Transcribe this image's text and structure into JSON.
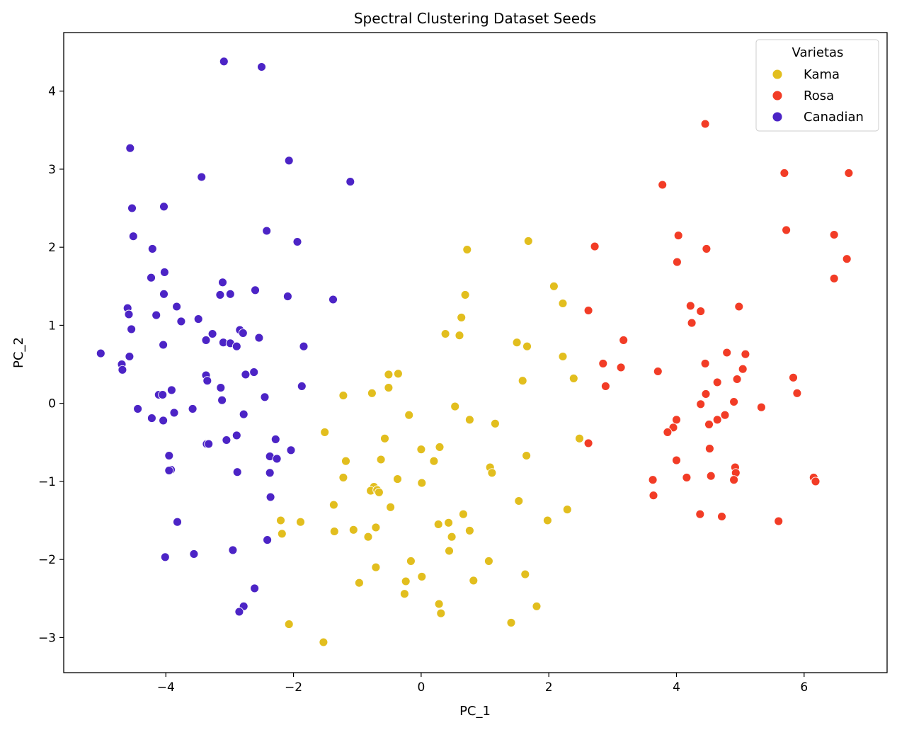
{
  "chart_data": {
    "type": "scatter",
    "title": "Spectral Clustering Dataset Seeds",
    "xlabel": "PC_1",
    "ylabel": "PC_2",
    "xlim": [
      -5.6,
      7.3
    ],
    "ylim": [
      -3.45,
      4.75
    ],
    "xticks": [
      -4,
      -2,
      0,
      2,
      4,
      6
    ],
    "yticks": [
      -3,
      -2,
      -1,
      0,
      1,
      2,
      3,
      4
    ],
    "xtick_labels": [
      "−4",
      "−2",
      "0",
      "2",
      "4",
      "6"
    ],
    "ytick_labels": [
      "−3",
      "−2",
      "−1",
      "0",
      "1",
      "2",
      "3",
      "4"
    ],
    "grid": false,
    "legend": {
      "title": "Varietas",
      "position": "top-right"
    },
    "series": [
      {
        "name": "Kama",
        "color": "#e2be1e",
        "points": [
          [
            0.72,
            1.97
          ],
          [
            1.68,
            2.08
          ],
          [
            2.08,
            1.5
          ],
          [
            2.22,
            1.28
          ],
          [
            0.69,
            1.39
          ],
          [
            0.63,
            1.1
          ],
          [
            0.38,
            0.89
          ],
          [
            0.6,
            0.87
          ],
          [
            1.5,
            0.78
          ],
          [
            1.66,
            0.73
          ],
          [
            2.22,
            0.6
          ],
          [
            2.39,
            0.32
          ],
          [
            1.59,
            0.29
          ],
          [
            -0.51,
            0.37
          ],
          [
            -0.36,
            0.38
          ],
          [
            -0.51,
            0.2
          ],
          [
            -0.77,
            0.13
          ],
          [
            -1.22,
            0.1
          ],
          [
            0.53,
            -0.04
          ],
          [
            -0.19,
            -0.15
          ],
          [
            0.76,
            -0.21
          ],
          [
            1.16,
            -0.26
          ],
          [
            -1.51,
            -0.37
          ],
          [
            -0.57,
            -0.45
          ],
          [
            2.48,
            -0.45
          ],
          [
            0.29,
            -0.56
          ],
          [
            0.0,
            -0.59
          ],
          [
            0.2,
            -0.74
          ],
          [
            -1.18,
            -0.74
          ],
          [
            -0.63,
            -0.72
          ],
          [
            1.65,
            -0.67
          ],
          [
            1.08,
            -0.82
          ],
          [
            1.11,
            -0.89
          ],
          [
            -1.22,
            -0.95
          ],
          [
            -0.37,
            -0.97
          ],
          [
            0.01,
            -1.02
          ],
          [
            -0.74,
            -1.07
          ],
          [
            -0.79,
            -1.12
          ],
          [
            -0.69,
            -1.11
          ],
          [
            -0.66,
            -1.14
          ],
          [
            -1.37,
            -1.3
          ],
          [
            -0.48,
            -1.33
          ],
          [
            1.53,
            -1.25
          ],
          [
            2.29,
            -1.36
          ],
          [
            0.66,
            -1.42
          ],
          [
            -2.2,
            -1.5
          ],
          [
            -1.89,
            -1.52
          ],
          [
            0.43,
            -1.53
          ],
          [
            0.27,
            -1.55
          ],
          [
            1.98,
            -1.5
          ],
          [
            -0.71,
            -1.59
          ],
          [
            -1.06,
            -1.62
          ],
          [
            -1.36,
            -1.64
          ],
          [
            0.76,
            -1.63
          ],
          [
            -2.18,
            -1.67
          ],
          [
            0.48,
            -1.71
          ],
          [
            -0.83,
            -1.71
          ],
          [
            0.44,
            -1.89
          ],
          [
            -0.16,
            -2.02
          ],
          [
            1.06,
            -2.02
          ],
          [
            -0.71,
            -2.1
          ],
          [
            1.63,
            -2.19
          ],
          [
            0.01,
            -2.22
          ],
          [
            0.82,
            -2.27
          ],
          [
            -0.24,
            -2.28
          ],
          [
            -0.97,
            -2.3
          ],
          [
            -0.26,
            -2.44
          ],
          [
            0.28,
            -2.57
          ],
          [
            1.81,
            -2.6
          ],
          [
            0.31,
            -2.69
          ],
          [
            1.41,
            -2.81
          ],
          [
            -2.07,
            -2.83
          ],
          [
            -1.53,
            -3.06
          ]
        ]
      },
      {
        "name": "Rosa",
        "color": "#f23c26",
        "points": [
          [
            4.45,
            3.58
          ],
          [
            3.78,
            2.8
          ],
          [
            5.69,
            2.95
          ],
          [
            6.7,
            2.95
          ],
          [
            5.72,
            2.22
          ],
          [
            6.47,
            2.16
          ],
          [
            4.03,
            2.15
          ],
          [
            2.72,
            2.01
          ],
          [
            4.47,
            1.98
          ],
          [
            4.01,
            1.81
          ],
          [
            6.67,
            1.85
          ],
          [
            6.47,
            1.6
          ],
          [
            4.22,
            1.25
          ],
          [
            4.98,
            1.24
          ],
          [
            2.62,
            1.19
          ],
          [
            4.38,
            1.18
          ],
          [
            4.24,
            1.03
          ],
          [
            3.17,
            0.81
          ],
          [
            4.79,
            0.65
          ],
          [
            5.08,
            0.63
          ],
          [
            2.85,
            0.51
          ],
          [
            4.45,
            0.51
          ],
          [
            3.13,
            0.46
          ],
          [
            5.04,
            0.44
          ],
          [
            3.71,
            0.41
          ],
          [
            5.83,
            0.33
          ],
          [
            4.95,
            0.31
          ],
          [
            4.64,
            0.27
          ],
          [
            2.89,
            0.22
          ],
          [
            5.89,
            0.13
          ],
          [
            4.46,
            0.12
          ],
          [
            4.9,
            0.02
          ],
          [
            4.38,
            -0.01
          ],
          [
            5.33,
            -0.05
          ],
          [
            4.76,
            -0.15
          ],
          [
            4.0,
            -0.21
          ],
          [
            4.64,
            -0.21
          ],
          [
            4.51,
            -0.27
          ],
          [
            3.95,
            -0.31
          ],
          [
            3.86,
            -0.37
          ],
          [
            2.62,
            -0.51
          ],
          [
            4.52,
            -0.58
          ],
          [
            4.0,
            -0.73
          ],
          [
            4.92,
            -0.82
          ],
          [
            4.93,
            -0.89
          ],
          [
            4.54,
            -0.93
          ],
          [
            4.16,
            -0.95
          ],
          [
            6.15,
            -0.95
          ],
          [
            3.63,
            -0.98
          ],
          [
            4.9,
            -0.98
          ],
          [
            6.18,
            -1.0
          ],
          [
            3.64,
            -1.18
          ],
          [
            4.37,
            -1.42
          ],
          [
            4.71,
            -1.45
          ],
          [
            5.6,
            -1.51
          ]
        ]
      },
      {
        "name": "Canadian",
        "color": "#4c24c6",
        "points": [
          [
            -3.09,
            4.38
          ],
          [
            -2.5,
            4.31
          ],
          [
            -4.56,
            3.27
          ],
          [
            -2.07,
            3.11
          ],
          [
            -3.44,
            2.9
          ],
          [
            -1.11,
            2.84
          ],
          [
            -4.03,
            2.52
          ],
          [
            -4.53,
            2.5
          ],
          [
            -2.42,
            2.21
          ],
          [
            -4.51,
            2.14
          ],
          [
            -1.94,
            2.07
          ],
          [
            -4.21,
            1.98
          ],
          [
            -4.02,
            1.68
          ],
          [
            -4.23,
            1.61
          ],
          [
            -3.11,
            1.55
          ],
          [
            -2.6,
            1.45
          ],
          [
            -3.15,
            1.39
          ],
          [
            -2.99,
            1.4
          ],
          [
            -4.03,
            1.4
          ],
          [
            -2.09,
            1.37
          ],
          [
            -1.38,
            1.33
          ],
          [
            -3.83,
            1.24
          ],
          [
            -4.6,
            1.22
          ],
          [
            -4.58,
            1.14
          ],
          [
            -4.15,
            1.13
          ],
          [
            -3.49,
            1.08
          ],
          [
            -3.76,
            1.05
          ],
          [
            -4.54,
            0.95
          ],
          [
            -2.84,
            0.94
          ],
          [
            -2.79,
            0.9
          ],
          [
            -3.27,
            0.89
          ],
          [
            -2.54,
            0.84
          ],
          [
            -3.37,
            0.81
          ],
          [
            -3.1,
            0.78
          ],
          [
            -2.99,
            0.77
          ],
          [
            -4.04,
            0.75
          ],
          [
            -1.84,
            0.73
          ],
          [
            -2.89,
            0.73
          ],
          [
            -5.02,
            0.64
          ],
          [
            -4.57,
            0.6
          ],
          [
            -4.69,
            0.5
          ],
          [
            -4.68,
            0.43
          ],
          [
            -2.62,
            0.4
          ],
          [
            -3.37,
            0.36
          ],
          [
            -2.75,
            0.37
          ],
          [
            -3.35,
            0.29
          ],
          [
            -1.87,
            0.22
          ],
          [
            -3.14,
            0.2
          ],
          [
            -3.91,
            0.17
          ],
          [
            -4.11,
            0.11
          ],
          [
            -4.05,
            0.11
          ],
          [
            -2.45,
            0.08
          ],
          [
            -3.12,
            0.04
          ],
          [
            -4.44,
            -0.07
          ],
          [
            -3.58,
            -0.07
          ],
          [
            -3.87,
            -0.12
          ],
          [
            -2.78,
            -0.14
          ],
          [
            -4.22,
            -0.19
          ],
          [
            -4.04,
            -0.22
          ],
          [
            -2.89,
            -0.41
          ],
          [
            -3.05,
            -0.47
          ],
          [
            -2.28,
            -0.46
          ],
          [
            -3.36,
            -0.52
          ],
          [
            -3.33,
            -0.52
          ],
          [
            -2.04,
            -0.6
          ],
          [
            -2.37,
            -0.68
          ],
          [
            -3.95,
            -0.67
          ],
          [
            -2.26,
            -0.71
          ],
          [
            -3.92,
            -0.85
          ],
          [
            -3.95,
            -0.86
          ],
          [
            -2.88,
            -0.88
          ],
          [
            -2.37,
            -0.89
          ],
          [
            -2.36,
            -1.2
          ],
          [
            -3.82,
            -1.52
          ],
          [
            -2.41,
            -1.75
          ],
          [
            -2.95,
            -1.88
          ],
          [
            -3.56,
            -1.93
          ],
          [
            -4.01,
            -1.97
          ],
          [
            -2.61,
            -2.37
          ],
          [
            -2.78,
            -2.6
          ],
          [
            -2.85,
            -2.67
          ]
        ]
      }
    ]
  }
}
